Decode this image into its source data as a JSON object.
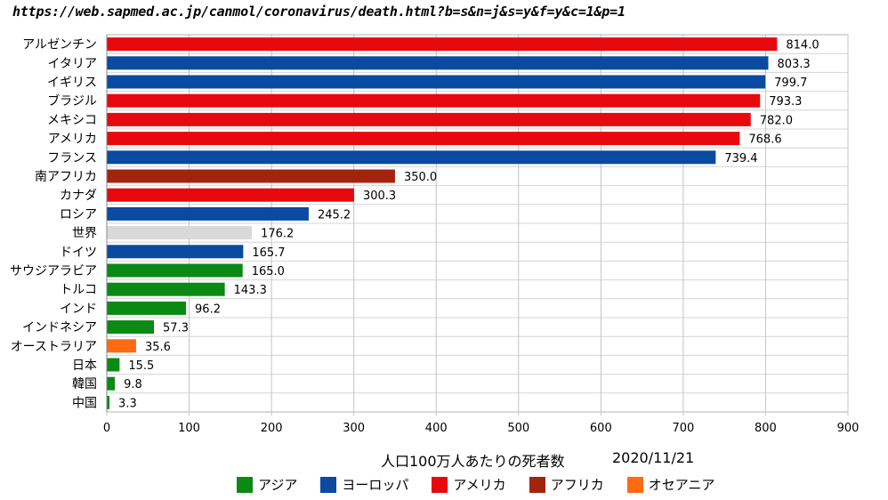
{
  "url_text": "https://web.sapmed.ac.jp/canmol/coronavirus/death.html?b=s&n=j&s=y&f=y&c=1&p=1",
  "colors": {
    "asia": "#0a8a14",
    "europe": "#0a4aa0",
    "america": "#e8090f",
    "africa": "#a3240e",
    "oceania": "#ff6a13",
    "world": "#d9d9d9"
  },
  "legend": [
    {
      "label": "アジア",
      "color_key": "asia"
    },
    {
      "label": "ヨーロッパ",
      "color_key": "europe"
    },
    {
      "label": "アメリカ",
      "color_key": "america"
    },
    {
      "label": "アフリカ",
      "color_key": "africa"
    },
    {
      "label": "オセアニア",
      "color_key": "oceania"
    }
  ],
  "chart_data": {
    "type": "bar",
    "orientation": "horizontal",
    "categories": [
      "アルゼンチン",
      "イタリア",
      "イギリス",
      "ブラジル",
      "メキシコ",
      "アメリカ",
      "フランス",
      "南アフリカ",
      "カナダ",
      "ロシア",
      "世界",
      "ドイツ",
      "サウジアラビア",
      "トルコ",
      "インド",
      "インドネシア",
      "オーストラリア",
      "日本",
      "韓国",
      "中国"
    ],
    "values": [
      814.0,
      803.3,
      799.7,
      793.3,
      782.0,
      768.6,
      739.4,
      350.0,
      300.3,
      245.2,
      176.2,
      165.7,
      165.0,
      143.3,
      96.2,
      57.3,
      35.6,
      15.5,
      9.8,
      3.3
    ],
    "value_labels": [
      "814.0",
      "803.3",
      "799.7",
      "793.3",
      "782.0",
      "768.6",
      "739.4",
      "350.0",
      "300.3",
      "245.2",
      "176.2",
      "165.7",
      "165.0",
      "143.3",
      "96.2",
      "57.3",
      "35.6",
      "15.5",
      "9.8",
      "3.3"
    ],
    "regions": [
      "america",
      "europe",
      "europe",
      "america",
      "america",
      "america",
      "europe",
      "africa",
      "america",
      "europe",
      "world",
      "europe",
      "asia",
      "asia",
      "asia",
      "asia",
      "oceania",
      "asia",
      "asia",
      "asia"
    ],
    "xlabel": "人口100万人あたりの死者数",
    "date": "2020/11/21",
    "xlim": [
      0,
      900
    ],
    "xticks": [
      "0",
      "100",
      "200",
      "300",
      "400",
      "500",
      "600",
      "700",
      "800",
      "900"
    ],
    "grid": true,
    "legend_position": "bottom"
  }
}
